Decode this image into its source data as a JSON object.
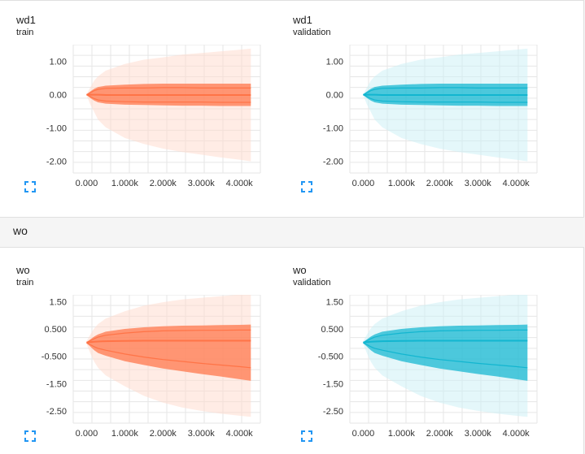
{
  "section": {
    "title": "wo"
  },
  "charts": [
    {
      "id": "wd1-train",
      "name": "wd1",
      "run": "train",
      "color": "#ff7043",
      "light": "#ffd9cc",
      "xTicks": [
        "0.000",
        "1.000k",
        "2.000k",
        "3.000k",
        "4.000k"
      ],
      "yTicks": [
        "1.00",
        "0.00",
        "-1.00",
        "-2.00"
      ],
      "chart_data": {
        "type": "area",
        "x": [
          0,
          100,
          200,
          300,
          500,
          1000,
          1500,
          2000,
          2500,
          3000,
          3500,
          4000,
          4300
        ],
        "ylim": [
          -2.35,
          1.5
        ],
        "ytick_values": [
          1,
          0,
          -1,
          -2
        ],
        "xlim": [
          -350,
          4550
        ],
        "xtick_values": [
          0,
          1000,
          2000,
          3000,
          4000
        ],
        "bands": [
          {
            "name": "outer",
            "upper": [
              0.02,
              0.22,
              0.42,
              0.55,
              0.72,
              0.92,
              1.05,
              1.12,
              1.2,
              1.25,
              1.3,
              1.35,
              1.38
            ],
            "lower": [
              -0.02,
              -0.3,
              -0.52,
              -0.75,
              -0.98,
              -1.3,
              -1.48,
              -1.62,
              -1.72,
              -1.8,
              -1.88,
              -1.95,
              -2.0
            ]
          },
          {
            "name": "middle",
            "upper": [
              0.01,
              0.1,
              0.18,
              0.23,
              0.27,
              0.3,
              0.32,
              0.33,
              0.33,
              0.33,
              0.33,
              0.33,
              0.33
            ],
            "lower": [
              -0.01,
              -0.1,
              -0.18,
              -0.23,
              -0.27,
              -0.3,
              -0.31,
              -0.32,
              -0.33,
              -0.33,
              -0.34,
              -0.34,
              -0.34
            ]
          }
        ],
        "lines": [
          {
            "values": [
              0.0,
              0.06,
              0.12,
              0.16,
              0.19,
              0.2,
              0.2,
              0.21,
              0.21,
              0.2,
              0.2,
              0.2,
              0.2
            ]
          },
          {
            "values": [
              0.0,
              0.0,
              0.0,
              0.0,
              -0.01,
              -0.01,
              -0.01,
              -0.01,
              -0.01,
              -0.01,
              -0.01,
              -0.01,
              -0.01
            ]
          },
          {
            "values": [
              0.0,
              -0.06,
              -0.12,
              -0.16,
              -0.19,
              -0.21,
              -0.22,
              -0.22,
              -0.22,
              -0.22,
              -0.23,
              -0.23,
              -0.23
            ]
          }
        ]
      }
    },
    {
      "id": "wd1-validation",
      "name": "wd1",
      "run": "validation",
      "color": "#0cb4ce",
      "light": "#c9eff6",
      "xTicks": [
        "0.000",
        "1.000k",
        "2.000k",
        "3.000k",
        "4.000k"
      ],
      "yTicks": [
        "1.00",
        "0.00",
        "-1.00",
        "-2.00"
      ],
      "chart_data": {
        "type": "area",
        "x": [
          0,
          100,
          200,
          300,
          500,
          1000,
          1500,
          2000,
          2500,
          3000,
          3500,
          4000,
          4300
        ],
        "ylim": [
          -2.35,
          1.5
        ],
        "ytick_values": [
          1,
          0,
          -1,
          -2
        ],
        "xlim": [
          -350,
          4550
        ],
        "xtick_values": [
          0,
          1000,
          2000,
          3000,
          4000
        ],
        "bands": [
          {
            "name": "outer",
            "upper": [
              0.02,
              0.22,
              0.42,
              0.55,
              0.72,
              0.92,
              1.05,
              1.12,
              1.2,
              1.25,
              1.3,
              1.35,
              1.38
            ],
            "lower": [
              -0.02,
              -0.3,
              -0.52,
              -0.75,
              -0.98,
              -1.3,
              -1.48,
              -1.62,
              -1.72,
              -1.8,
              -1.88,
              -1.95,
              -2.0
            ]
          },
          {
            "name": "middle",
            "upper": [
              0.01,
              0.1,
              0.18,
              0.23,
              0.27,
              0.3,
              0.32,
              0.33,
              0.33,
              0.33,
              0.33,
              0.33,
              0.33
            ],
            "lower": [
              -0.01,
              -0.1,
              -0.18,
              -0.23,
              -0.27,
              -0.3,
              -0.31,
              -0.32,
              -0.33,
              -0.33,
              -0.34,
              -0.34,
              -0.34
            ]
          }
        ],
        "lines": [
          {
            "values": [
              0.0,
              0.06,
              0.12,
              0.16,
              0.19,
              0.2,
              0.2,
              0.21,
              0.21,
              0.2,
              0.2,
              0.2,
              0.2
            ]
          },
          {
            "values": [
              0.0,
              0.0,
              0.0,
              0.0,
              -0.01,
              -0.01,
              -0.01,
              -0.01,
              -0.01,
              -0.01,
              -0.01,
              -0.01,
              -0.01
            ]
          },
          {
            "values": [
              0.0,
              -0.06,
              -0.12,
              -0.16,
              -0.19,
              -0.21,
              -0.22,
              -0.22,
              -0.22,
              -0.22,
              -0.23,
              -0.23,
              -0.23
            ]
          }
        ]
      }
    },
    {
      "id": "wo-train",
      "name": "wo",
      "run": "train",
      "color": "#ff7043",
      "light": "#ffd9cc",
      "xTicks": [
        "0.000",
        "1.000k",
        "2.000k",
        "3.000k",
        "4.000k"
      ],
      "yTicks": [
        "1.50",
        "0.500",
        "-0.500",
        "-1.50",
        "-2.50"
      ],
      "chart_data": {
        "type": "area",
        "x": [
          0,
          100,
          200,
          300,
          500,
          1000,
          1500,
          2000,
          2500,
          3000,
          3500,
          4000,
          4300
        ],
        "ylim": [
          -2.95,
          1.75
        ],
        "ytick_values": [
          1.5,
          0.5,
          -0.5,
          -1.5,
          -2.5
        ],
        "xlim": [
          -350,
          4550
        ],
        "xtick_values": [
          0,
          1000,
          2000,
          3000,
          4000
        ],
        "bands": [
          {
            "name": "outer",
            "upper": [
              0.05,
              0.3,
              0.52,
              0.68,
              0.88,
              1.15,
              1.35,
              1.48,
              1.58,
              1.64,
              1.7,
              1.76,
              1.8
            ],
            "lower": [
              -0.05,
              -0.4,
              -0.7,
              -0.92,
              -1.2,
              -1.6,
              -1.95,
              -2.2,
              -2.38,
              -2.5,
              -2.6,
              -2.68,
              -2.72
            ]
          },
          {
            "name": "middle",
            "upper": [
              0.02,
              0.12,
              0.22,
              0.3,
              0.4,
              0.5,
              0.56,
              0.6,
              0.62,
              0.63,
              0.64,
              0.65,
              0.66
            ],
            "lower": [
              -0.02,
              -0.15,
              -0.28,
              -0.38,
              -0.48,
              -0.68,
              -0.82,
              -0.95,
              -1.05,
              -1.15,
              -1.24,
              -1.34,
              -1.4
            ]
          }
        ],
        "lines": [
          {
            "values": [
              0.01,
              0.07,
              0.14,
              0.2,
              0.27,
              0.35,
              0.4,
              0.43,
              0.44,
              0.45,
              0.45,
              0.46,
              0.46
            ]
          },
          {
            "values": [
              0.0,
              0.02,
              0.03,
              0.04,
              0.05,
              0.06,
              0.07,
              0.07,
              0.07,
              0.07,
              0.07,
              0.07,
              0.07
            ]
          },
          {
            "values": [
              -0.01,
              -0.08,
              -0.15,
              -0.21,
              -0.28,
              -0.42,
              -0.53,
              -0.62,
              -0.69,
              -0.76,
              -0.82,
              -0.88,
              -0.92
            ]
          }
        ]
      }
    },
    {
      "id": "wo-validation",
      "name": "wo",
      "run": "validation",
      "color": "#0cb4ce",
      "light": "#c9eff6",
      "xTicks": [
        "0.000",
        "1.000k",
        "2.000k",
        "3.000k",
        "4.000k"
      ],
      "yTicks": [
        "1.50",
        "0.500",
        "-0.500",
        "-1.50",
        "-2.50"
      ],
      "chart_data": {
        "type": "area",
        "x": [
          0,
          100,
          200,
          300,
          500,
          1000,
          1500,
          2000,
          2500,
          3000,
          3500,
          4000,
          4300
        ],
        "ylim": [
          -2.95,
          1.75
        ],
        "ytick_values": [
          1.5,
          0.5,
          -0.5,
          -1.5,
          -2.5
        ],
        "xlim": [
          -350,
          4550
        ],
        "xtick_values": [
          0,
          1000,
          2000,
          3000,
          4000
        ],
        "bands": [
          {
            "name": "outer",
            "upper": [
              0.05,
              0.3,
              0.52,
              0.68,
              0.88,
              1.15,
              1.35,
              1.48,
              1.58,
              1.64,
              1.7,
              1.76,
              1.8
            ],
            "lower": [
              -0.05,
              -0.4,
              -0.7,
              -0.92,
              -1.2,
              -1.6,
              -1.95,
              -2.2,
              -2.38,
              -2.5,
              -2.6,
              -2.68,
              -2.72
            ]
          },
          {
            "name": "middle",
            "upper": [
              0.02,
              0.12,
              0.22,
              0.3,
              0.4,
              0.5,
              0.56,
              0.6,
              0.62,
              0.63,
              0.64,
              0.65,
              0.66
            ],
            "lower": [
              -0.02,
              -0.15,
              -0.28,
              -0.38,
              -0.48,
              -0.68,
              -0.82,
              -0.95,
              -1.05,
              -1.15,
              -1.24,
              -1.34,
              -1.4
            ]
          }
        ],
        "lines": [
          {
            "values": [
              0.01,
              0.07,
              0.14,
              0.2,
              0.27,
              0.35,
              0.4,
              0.43,
              0.44,
              0.45,
              0.45,
              0.46,
              0.46
            ]
          },
          {
            "values": [
              0.0,
              0.02,
              0.03,
              0.04,
              0.05,
              0.06,
              0.07,
              0.07,
              0.07,
              0.07,
              0.07,
              0.07,
              0.07
            ]
          },
          {
            "values": [
              -0.01,
              -0.08,
              -0.15,
              -0.21,
              -0.28,
              -0.42,
              -0.53,
              -0.62,
              -0.69,
              -0.76,
              -0.82,
              -0.88,
              -0.92
            ]
          }
        ]
      }
    }
  ],
  "expand_icon": {
    "icon": "fullscreen-icon",
    "color": "#2196f3"
  }
}
